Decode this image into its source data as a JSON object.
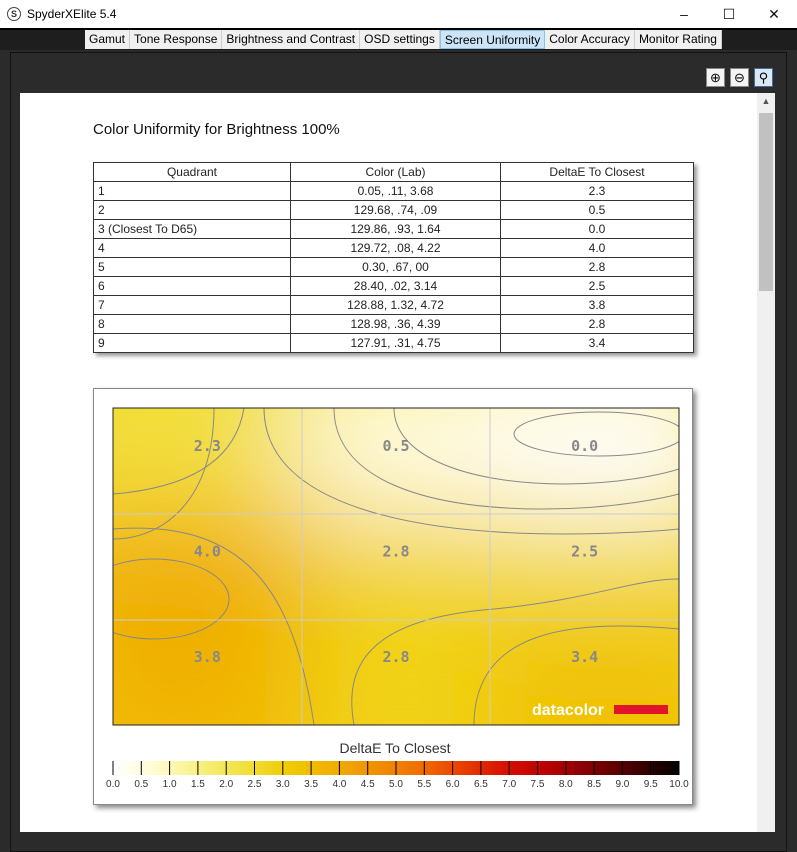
{
  "window": {
    "title": "SpyderXElite 5.4",
    "icon": "S",
    "minimize": "–",
    "maximize": "☐",
    "close": "✕"
  },
  "tabs": [
    {
      "label": "Gamut"
    },
    {
      "label": "Tone Response"
    },
    {
      "label": "Brightness and Contrast"
    },
    {
      "label": "OSD settings"
    },
    {
      "label": "Screen Uniformity",
      "active": true
    },
    {
      "label": "Color Accuracy"
    },
    {
      "label": "Monitor Rating"
    }
  ],
  "toolbar": {
    "zoom_in": "⊕",
    "zoom_out": "⊖",
    "zoom_fit": "⚲"
  },
  "report": {
    "title": "Color Uniformity for Brightness 100%",
    "table": {
      "headers": [
        "Quadrant",
        "Color (Lab)",
        "DeltaE To Closest"
      ],
      "rows": [
        [
          "1",
          "0.05,    .11,   3.68",
          "2.3"
        ],
        [
          "2",
          "129.68,    .74,    .09",
          "0.5"
        ],
        [
          "3 (Closest To D65)",
          "129.86,    .93,   1.64",
          "0.0"
        ],
        [
          "4",
          "129.72,    .08,   4.22",
          "4.0"
        ],
        [
          "5",
          "0.30,    .67,     00",
          "2.8"
        ],
        [
          "6",
          "28.40,    .02,   3.14",
          "2.5"
        ],
        [
          "7",
          "128.88,   1.32,   4.72",
          "3.8"
        ],
        [
          "8",
          "128.98,    .36,   4.39",
          "2.8"
        ],
        [
          "9",
          "127.91,    .31,   4.75",
          "3.4"
        ]
      ]
    }
  },
  "chart_data": {
    "type": "heatmap",
    "grid": [
      [
        2.3,
        0.5,
        0.0
      ],
      [
        4.0,
        2.8,
        2.5
      ],
      [
        3.8,
        2.8,
        3.4
      ]
    ],
    "labels": [
      [
        "2.3",
        "0.5",
        "0.0"
      ],
      [
        "4.0",
        "2.8",
        "2.5"
      ],
      [
        "3.8",
        "2.8",
        "3.4"
      ]
    ],
    "colorbar": {
      "title": "DeltaE To Closest",
      "range": [
        0,
        10
      ],
      "ticks": [
        "0.0",
        "0.5",
        "1.0",
        "1.5",
        "2.0",
        "2.5",
        "3.0",
        "3.5",
        "4.0",
        "4.5",
        "5.0",
        "5.5",
        "6.0",
        "6.5",
        "7.0",
        "7.5",
        "8.0",
        "8.5",
        "9.0",
        "9.5",
        "10.0"
      ],
      "colors": [
        "#ffffff",
        "#fffbd0",
        "#f8f080",
        "#f2e040",
        "#f0cc00",
        "#f0b000",
        "#f09000",
        "#f07000",
        "#e84000",
        "#d81000",
        "#b80000",
        "#800000",
        "#400000",
        "#000000"
      ]
    },
    "logo": "datacolor"
  }
}
